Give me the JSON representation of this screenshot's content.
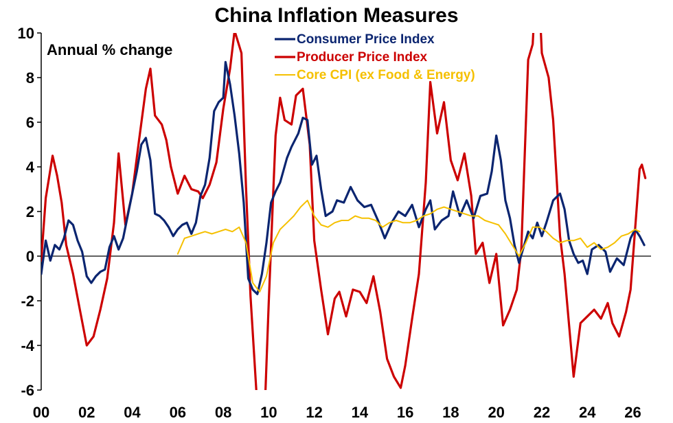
{
  "chart_data": {
    "type": "line",
    "title": "China Inflation Measures",
    "annotation": "Annual % change",
    "xlabel": "",
    "ylabel": "",
    "xlim": [
      2000,
      2026.8
    ],
    "ylim": [
      -6,
      10
    ],
    "x_ticks": [
      {
        "value": 2000,
        "label": "00"
      },
      {
        "value": 2002,
        "label": "02"
      },
      {
        "value": 2004,
        "label": "04"
      },
      {
        "value": 2006,
        "label": "06"
      },
      {
        "value": 2008,
        "label": "08"
      },
      {
        "value": 2010,
        "label": "10"
      },
      {
        "value": 2012,
        "label": "12"
      },
      {
        "value": 2014,
        "label": "14"
      },
      {
        "value": 2016,
        "label": "16"
      },
      {
        "value": 2018,
        "label": "18"
      },
      {
        "value": 2020,
        "label": "20"
      },
      {
        "value": 2022,
        "label": "22"
      },
      {
        "value": 2024,
        "label": "24"
      },
      {
        "value": 2026,
        "label": "26"
      }
    ],
    "y_ticks": [
      {
        "value": 10,
        "label": "10"
      },
      {
        "value": 8,
        "label": "8"
      },
      {
        "value": 6,
        "label": "6"
      },
      {
        "value": 4,
        "label": "4"
      },
      {
        "value": 2,
        "label": "2"
      },
      {
        "value": 0,
        "label": "0"
      },
      {
        "value": -2,
        "label": "-2"
      },
      {
        "value": -4,
        "label": "-4"
      },
      {
        "value": -6,
        "label": "-6"
      }
    ],
    "grid": false,
    "legend_position": "top-center",
    "series": [
      {
        "name": "Consumer Price Index",
        "color": "#0b2570",
        "points": [
          [
            2000.0,
            -0.8
          ],
          [
            2000.2,
            0.7
          ],
          [
            2000.4,
            -0.2
          ],
          [
            2000.6,
            0.5
          ],
          [
            2000.8,
            0.3
          ],
          [
            2001.0,
            0.8
          ],
          [
            2001.2,
            1.6
          ],
          [
            2001.4,
            1.4
          ],
          [
            2001.6,
            0.7
          ],
          [
            2001.8,
            0.2
          ],
          [
            2002.0,
            -0.9
          ],
          [
            2002.2,
            -1.2
          ],
          [
            2002.4,
            -0.9
          ],
          [
            2002.6,
            -0.7
          ],
          [
            2002.8,
            -0.6
          ],
          [
            2003.0,
            0.4
          ],
          [
            2003.2,
            0.9
          ],
          [
            2003.4,
            0.3
          ],
          [
            2003.6,
            0.8
          ],
          [
            2003.8,
            1.8
          ],
          [
            2004.0,
            2.8
          ],
          [
            2004.2,
            3.8
          ],
          [
            2004.4,
            5.0
          ],
          [
            2004.6,
            5.3
          ],
          [
            2004.8,
            4.3
          ],
          [
            2005.0,
            1.9
          ],
          [
            2005.2,
            1.8
          ],
          [
            2005.4,
            1.6
          ],
          [
            2005.6,
            1.3
          ],
          [
            2005.8,
            0.9
          ],
          [
            2006.0,
            1.2
          ],
          [
            2006.2,
            1.4
          ],
          [
            2006.4,
            1.5
          ],
          [
            2006.6,
            1.0
          ],
          [
            2006.8,
            1.5
          ],
          [
            2007.0,
            2.7
          ],
          [
            2007.2,
            3.2
          ],
          [
            2007.4,
            4.4
          ],
          [
            2007.6,
            6.5
          ],
          [
            2007.8,
            6.9
          ],
          [
            2008.0,
            7.1
          ],
          [
            2008.1,
            8.7
          ],
          [
            2008.3,
            7.7
          ],
          [
            2008.5,
            6.3
          ],
          [
            2008.7,
            4.6
          ],
          [
            2008.9,
            2.4
          ],
          [
            2009.1,
            -1.0
          ],
          [
            2009.3,
            -1.5
          ],
          [
            2009.5,
            -1.7
          ],
          [
            2009.7,
            -0.8
          ],
          [
            2009.9,
            0.6
          ],
          [
            2010.1,
            2.4
          ],
          [
            2010.3,
            2.9
          ],
          [
            2010.5,
            3.3
          ],
          [
            2010.8,
            4.4
          ],
          [
            2011.0,
            4.9
          ],
          [
            2011.3,
            5.5
          ],
          [
            2011.5,
            6.2
          ],
          [
            2011.7,
            6.1
          ],
          [
            2011.9,
            4.1
          ],
          [
            2012.1,
            4.5
          ],
          [
            2012.3,
            3.0
          ],
          [
            2012.5,
            1.8
          ],
          [
            2012.8,
            2.0
          ],
          [
            2013.0,
            2.5
          ],
          [
            2013.3,
            2.4
          ],
          [
            2013.6,
            3.1
          ],
          [
            2013.9,
            2.5
          ],
          [
            2014.2,
            2.2
          ],
          [
            2014.5,
            2.3
          ],
          [
            2014.8,
            1.6
          ],
          [
            2015.1,
            0.8
          ],
          [
            2015.4,
            1.5
          ],
          [
            2015.7,
            2.0
          ],
          [
            2016.0,
            1.8
          ],
          [
            2016.3,
            2.3
          ],
          [
            2016.6,
            1.3
          ],
          [
            2016.9,
            2.1
          ],
          [
            2017.1,
            2.5
          ],
          [
            2017.3,
            1.2
          ],
          [
            2017.6,
            1.6
          ],
          [
            2017.9,
            1.8
          ],
          [
            2018.1,
            2.9
          ],
          [
            2018.4,
            1.8
          ],
          [
            2018.7,
            2.5
          ],
          [
            2019.0,
            1.7
          ],
          [
            2019.3,
            2.7
          ],
          [
            2019.6,
            2.8
          ],
          [
            2019.8,
            3.8
          ],
          [
            2020.0,
            5.4
          ],
          [
            2020.2,
            4.3
          ],
          [
            2020.4,
            2.5
          ],
          [
            2020.6,
            1.7
          ],
          [
            2020.8,
            0.5
          ],
          [
            2021.0,
            -0.3
          ],
          [
            2021.2,
            0.4
          ],
          [
            2021.4,
            1.1
          ],
          [
            2021.6,
            0.8
          ],
          [
            2021.8,
            1.5
          ],
          [
            2022.0,
            0.9
          ],
          [
            2022.2,
            1.5
          ],
          [
            2022.5,
            2.5
          ],
          [
            2022.8,
            2.8
          ],
          [
            2023.0,
            2.1
          ],
          [
            2023.2,
            0.7
          ],
          [
            2023.4,
            0.1
          ],
          [
            2023.6,
            -0.3
          ],
          [
            2023.8,
            -0.2
          ],
          [
            2024.0,
            -0.8
          ],
          [
            2024.2,
            0.3
          ],
          [
            2024.5,
            0.5
          ],
          [
            2024.8,
            0.2
          ],
          [
            2025.0,
            -0.7
          ],
          [
            2025.3,
            -0.1
          ],
          [
            2025.6,
            -0.4
          ],
          [
            2025.9,
            0.8
          ],
          [
            2026.1,
            1.2
          ],
          [
            2026.3,
            0.9
          ],
          [
            2026.5,
            0.5
          ]
        ]
      },
      {
        "name": "Producer Price Index",
        "color": "#cc0000",
        "points": [
          [
            2000.0,
            -0.2
          ],
          [
            2000.2,
            2.6
          ],
          [
            2000.5,
            4.5
          ],
          [
            2000.7,
            3.6
          ],
          [
            2000.9,
            2.4
          ],
          [
            2001.1,
            0.5
          ],
          [
            2001.4,
            -0.8
          ],
          [
            2001.7,
            -2.4
          ],
          [
            2002.0,
            -4.0
          ],
          [
            2002.3,
            -3.6
          ],
          [
            2002.6,
            -2.4
          ],
          [
            2002.9,
            -1.0
          ],
          [
            2003.2,
            1.5
          ],
          [
            2003.4,
            4.6
          ],
          [
            2003.7,
            1.4
          ],
          [
            2004.0,
            2.8
          ],
          [
            2004.3,
            5.2
          ],
          [
            2004.6,
            7.5
          ],
          [
            2004.8,
            8.4
          ],
          [
            2005.0,
            6.3
          ],
          [
            2005.3,
            5.9
          ],
          [
            2005.5,
            5.2
          ],
          [
            2005.7,
            4.0
          ],
          [
            2006.0,
            2.8
          ],
          [
            2006.3,
            3.6
          ],
          [
            2006.6,
            3.0
          ],
          [
            2006.9,
            2.9
          ],
          [
            2007.1,
            2.6
          ],
          [
            2007.4,
            3.2
          ],
          [
            2007.7,
            4.2
          ],
          [
            2008.0,
            6.6
          ],
          [
            2008.3,
            8.4
          ],
          [
            2008.5,
            10.1
          ],
          [
            2008.8,
            9.1
          ],
          [
            2009.0,
            3.1
          ],
          [
            2009.2,
            -1.8
          ],
          [
            2009.5,
            -6.8
          ],
          [
            2009.8,
            -7.6
          ],
          [
            2010.0,
            -2.1
          ],
          [
            2010.3,
            5.4
          ],
          [
            2010.5,
            7.1
          ],
          [
            2010.7,
            6.1
          ],
          [
            2011.0,
            5.9
          ],
          [
            2011.2,
            7.2
          ],
          [
            2011.5,
            7.5
          ],
          [
            2011.8,
            5.0
          ],
          [
            2012.0,
            0.7
          ],
          [
            2012.3,
            -1.5
          ],
          [
            2012.6,
            -3.5
          ],
          [
            2012.9,
            -1.9
          ],
          [
            2013.1,
            -1.6
          ],
          [
            2013.4,
            -2.7
          ],
          [
            2013.7,
            -1.5
          ],
          [
            2014.0,
            -1.6
          ],
          [
            2014.3,
            -2.1
          ],
          [
            2014.6,
            -0.9
          ],
          [
            2014.9,
            -2.5
          ],
          [
            2015.2,
            -4.6
          ],
          [
            2015.5,
            -5.4
          ],
          [
            2015.8,
            -5.9
          ],
          [
            2016.0,
            -4.9
          ],
          [
            2016.3,
            -2.8
          ],
          [
            2016.6,
            -0.8
          ],
          [
            2016.9,
            3.3
          ],
          [
            2017.1,
            7.8
          ],
          [
            2017.4,
            5.5
          ],
          [
            2017.7,
            6.9
          ],
          [
            2018.0,
            4.3
          ],
          [
            2018.3,
            3.4
          ],
          [
            2018.6,
            4.6
          ],
          [
            2018.9,
            2.7
          ],
          [
            2019.1,
            0.1
          ],
          [
            2019.4,
            0.6
          ],
          [
            2019.7,
            -1.2
          ],
          [
            2020.0,
            0.1
          ],
          [
            2020.3,
            -3.1
          ],
          [
            2020.6,
            -2.4
          ],
          [
            2020.9,
            -1.5
          ],
          [
            2021.1,
            0.3
          ],
          [
            2021.4,
            8.8
          ],
          [
            2021.6,
            9.5
          ],
          [
            2021.8,
            13.5
          ],
          [
            2022.0,
            9.1
          ],
          [
            2022.3,
            8.0
          ],
          [
            2022.5,
            6.1
          ],
          [
            2022.8,
            0.9
          ],
          [
            2023.0,
            -0.8
          ],
          [
            2023.2,
            -3.1
          ],
          [
            2023.4,
            -5.4
          ],
          [
            2023.7,
            -3.0
          ],
          [
            2024.0,
            -2.7
          ],
          [
            2024.3,
            -2.4
          ],
          [
            2024.6,
            -2.8
          ],
          [
            2024.9,
            -2.1
          ],
          [
            2025.1,
            -3.0
          ],
          [
            2025.4,
            -3.6
          ],
          [
            2025.7,
            -2.5
          ],
          [
            2025.9,
            -1.5
          ],
          [
            2026.1,
            1.2
          ],
          [
            2026.3,
            3.9
          ],
          [
            2026.4,
            4.1
          ],
          [
            2026.55,
            3.5
          ]
        ]
      },
      {
        "name": "Core CPI (ex Food & Energy)",
        "color": "#f5c000",
        "points": [
          [
            2006.0,
            0.1
          ],
          [
            2006.3,
            0.8
          ],
          [
            2006.6,
            0.9
          ],
          [
            2006.9,
            1.0
          ],
          [
            2007.2,
            1.1
          ],
          [
            2007.5,
            1.0
          ],
          [
            2007.8,
            1.1
          ],
          [
            2008.1,
            1.2
          ],
          [
            2008.4,
            1.1
          ],
          [
            2008.7,
            1.3
          ],
          [
            2009.0,
            0.6
          ],
          [
            2009.3,
            -1.2
          ],
          [
            2009.6,
            -1.6
          ],
          [
            2009.9,
            -0.9
          ],
          [
            2010.2,
            0.6
          ],
          [
            2010.5,
            1.2
          ],
          [
            2010.8,
            1.5
          ],
          [
            2011.1,
            1.8
          ],
          [
            2011.4,
            2.2
          ],
          [
            2011.7,
            2.5
          ],
          [
            2012.0,
            1.8
          ],
          [
            2012.3,
            1.4
          ],
          [
            2012.6,
            1.3
          ],
          [
            2012.9,
            1.5
          ],
          [
            2013.2,
            1.6
          ],
          [
            2013.5,
            1.6
          ],
          [
            2013.8,
            1.8
          ],
          [
            2014.1,
            1.7
          ],
          [
            2014.4,
            1.7
          ],
          [
            2014.7,
            1.6
          ],
          [
            2015.0,
            1.3
          ],
          [
            2015.3,
            1.5
          ],
          [
            2015.6,
            1.6
          ],
          [
            2015.9,
            1.5
          ],
          [
            2016.2,
            1.5
          ],
          [
            2016.5,
            1.6
          ],
          [
            2016.8,
            1.8
          ],
          [
            2017.1,
            1.9
          ],
          [
            2017.4,
            2.1
          ],
          [
            2017.7,
            2.2
          ],
          [
            2018.0,
            2.1
          ],
          [
            2018.3,
            2.0
          ],
          [
            2018.6,
            1.9
          ],
          [
            2018.9,
            1.8
          ],
          [
            2019.2,
            1.8
          ],
          [
            2019.5,
            1.6
          ],
          [
            2019.8,
            1.5
          ],
          [
            2020.1,
            1.4
          ],
          [
            2020.4,
            1.0
          ],
          [
            2020.7,
            0.5
          ],
          [
            2021.0,
            0.0
          ],
          [
            2021.3,
            0.6
          ],
          [
            2021.6,
            1.3
          ],
          [
            2021.9,
            1.3
          ],
          [
            2022.2,
            1.1
          ],
          [
            2022.5,
            0.8
          ],
          [
            2022.8,
            0.6
          ],
          [
            2023.1,
            0.7
          ],
          [
            2023.4,
            0.7
          ],
          [
            2023.7,
            0.8
          ],
          [
            2024.0,
            0.4
          ],
          [
            2024.3,
            0.6
          ],
          [
            2024.6,
            0.3
          ],
          [
            2024.9,
            0.4
          ],
          [
            2025.2,
            0.6
          ],
          [
            2025.5,
            0.9
          ],
          [
            2025.8,
            1.0
          ],
          [
            2026.1,
            1.2
          ],
          [
            2026.3,
            1.1
          ]
        ]
      }
    ]
  }
}
